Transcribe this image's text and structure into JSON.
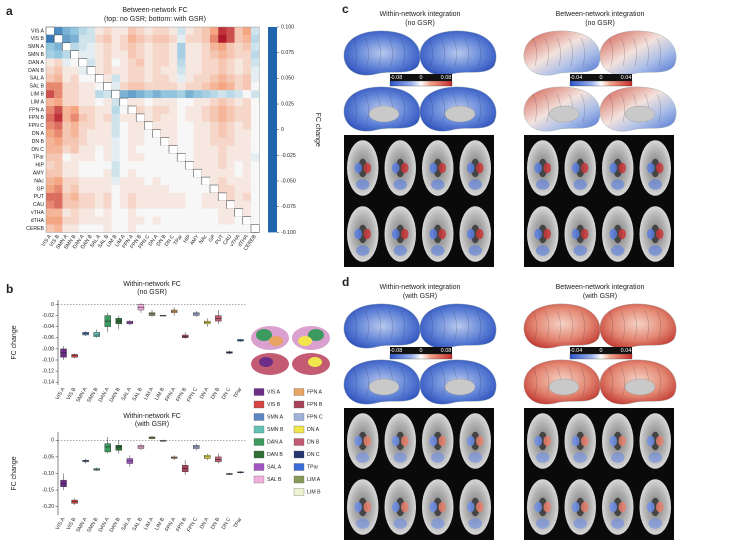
{
  "chart_data": [
    {
      "type": "heatmap",
      "title": "Between-network FC",
      "subtitle": "(top: no GSR; bottom: with GSR)",
      "labels": [
        "VIS A",
        "VIS B",
        "SMN A",
        "SMN B",
        "DAN A",
        "DAN B",
        "SAL A",
        "SAL B",
        "LIM B",
        "LIM A",
        "FPN A",
        "FPN B",
        "FPN C",
        "DN A",
        "DN B",
        "DN C",
        "TPar",
        "HIP",
        "AMY",
        "NAc",
        "GP",
        "PUT",
        "CAU",
        "vTHA",
        "dTHA",
        "CEREB"
      ],
      "values": [
        [
          null,
          -0.08,
          -0.06,
          -0.05,
          -0.03,
          -0.02,
          0.01,
          0.02,
          0.01,
          0.01,
          0.03,
          0.02,
          0.01,
          0.02,
          0.02,
          0.01,
          -0.02,
          0.01,
          0.02,
          0.03,
          0.05,
          0.09,
          0.08,
          0.03,
          0.05,
          -0.02
        ],
        [
          -0.09,
          null,
          -0.07,
          -0.06,
          -0.02,
          -0.02,
          0.02,
          0.03,
          0.01,
          0.02,
          0.04,
          0.03,
          0.02,
          0.03,
          0.03,
          0.02,
          -0.01,
          0.02,
          0.02,
          0.03,
          0.06,
          0.1,
          0.08,
          0.03,
          0.04,
          -0.03
        ],
        [
          -0.05,
          -0.06,
          null,
          -0.03,
          -0.02,
          -0.01,
          0.01,
          0.02,
          0.01,
          0.02,
          0.03,
          0.02,
          0.01,
          0.02,
          0.02,
          0.01,
          -0.04,
          0.01,
          0.01,
          0.02,
          0.04,
          0.05,
          0.03,
          0.02,
          0.03,
          -0.02
        ],
        [
          -0.04,
          -0.05,
          -0.03,
          null,
          -0.01,
          -0.01,
          0.01,
          0.02,
          0.01,
          0.01,
          0.03,
          0.02,
          0.01,
          0.02,
          0.02,
          0.01,
          -0.04,
          0.01,
          0.01,
          0.02,
          0.03,
          0.04,
          0.03,
          0.02,
          0.02,
          -0.03
        ],
        [
          0.01,
          0.02,
          -0.01,
          0.0,
          null,
          -0.02,
          0.01,
          0.02,
          0.0,
          0.01,
          0.02,
          0.03,
          0.01,
          0.02,
          0.02,
          0.01,
          -0.03,
          0.01,
          0.01,
          0.02,
          0.02,
          0.03,
          0.02,
          0.01,
          0.02,
          -0.02
        ],
        [
          0.02,
          0.03,
          0.01,
          0.01,
          -0.01,
          null,
          0.01,
          0.02,
          0.01,
          0.01,
          0.02,
          0.02,
          0.01,
          0.02,
          0.01,
          0.01,
          -0.02,
          0.01,
          0.01,
          0.02,
          0.02,
          0.03,
          0.02,
          0.01,
          0.02,
          -0.01
        ],
        [
          0.03,
          0.04,
          0.01,
          0.02,
          0.0,
          0.0,
          null,
          0.01,
          -0.02,
          0.01,
          0.02,
          0.02,
          0.01,
          0.02,
          0.02,
          0.01,
          -0.01,
          0.01,
          0.02,
          0.02,
          0.03,
          0.04,
          0.03,
          0.02,
          0.03,
          -0.01
        ],
        [
          0.06,
          0.06,
          0.02,
          0.02,
          0.01,
          0.01,
          0.0,
          null,
          -0.01,
          0.02,
          0.03,
          0.03,
          0.02,
          0.02,
          0.02,
          0.02,
          0.01,
          0.02,
          0.02,
          0.03,
          0.04,
          0.05,
          0.04,
          0.02,
          0.03,
          0.0
        ],
        [
          0.08,
          0.06,
          0.02,
          0.02,
          0.01,
          0.01,
          -0.03,
          -0.02,
          null,
          -0.06,
          -0.07,
          -0.06,
          -0.05,
          -0.06,
          -0.05,
          -0.05,
          -0.04,
          -0.06,
          -0.05,
          -0.04,
          -0.03,
          -0.02,
          -0.03,
          -0.02,
          0.0,
          -0.02
        ],
        [
          0.04,
          0.05,
          0.02,
          0.02,
          0.01,
          0.01,
          0.0,
          0.01,
          -0.02,
          null,
          0.01,
          0.01,
          0.0,
          0.01,
          0.01,
          0.01,
          0.0,
          0.0,
          0.01,
          0.01,
          0.02,
          0.03,
          0.02,
          0.01,
          0.02,
          0.0
        ],
        [
          0.06,
          0.08,
          0.04,
          0.05,
          0.02,
          0.02,
          0.01,
          0.01,
          -0.03,
          0.0,
          null,
          0.02,
          0.01,
          0.02,
          0.02,
          0.01,
          0.0,
          0.01,
          0.01,
          0.02,
          0.03,
          0.04,
          0.03,
          0.02,
          0.02,
          0.0
        ],
        [
          0.07,
          0.09,
          0.04,
          0.06,
          0.03,
          0.02,
          0.01,
          0.02,
          -0.02,
          0.01,
          0.01,
          null,
          0.01,
          0.02,
          0.01,
          0.01,
          0.0,
          0.01,
          0.01,
          0.02,
          0.03,
          0.04,
          0.03,
          0.02,
          0.02,
          0.0
        ],
        [
          0.06,
          0.07,
          0.03,
          0.04,
          0.02,
          0.02,
          0.01,
          0.01,
          -0.02,
          0.0,
          0.01,
          0.01,
          null,
          0.01,
          0.01,
          0.01,
          0.0,
          0.0,
          0.01,
          0.01,
          0.02,
          0.03,
          0.02,
          0.01,
          0.02,
          0.0
        ],
        [
          0.05,
          0.06,
          0.03,
          0.04,
          0.02,
          0.01,
          0.01,
          0.01,
          -0.02,
          0.0,
          0.01,
          0.01,
          0.0,
          null,
          0.01,
          0.01,
          0.0,
          0.0,
          0.01,
          0.01,
          0.02,
          0.03,
          0.02,
          0.01,
          0.01,
          0.0
        ],
        [
          0.04,
          0.05,
          0.03,
          0.03,
          0.02,
          0.01,
          0.01,
          0.01,
          -0.01,
          0.0,
          0.01,
          0.01,
          0.0,
          0.0,
          null,
          0.01,
          0.0,
          0.0,
          0.01,
          0.01,
          0.02,
          0.02,
          0.02,
          0.01,
          0.01,
          0.0
        ],
        [
          0.04,
          0.04,
          0.02,
          0.03,
          0.01,
          0.01,
          0.0,
          0.01,
          -0.01,
          0.0,
          0.01,
          0.0,
          0.0,
          0.0,
          0.0,
          null,
          0.0,
          0.0,
          0.01,
          0.01,
          0.01,
          0.02,
          0.01,
          0.01,
          0.01,
          0.0
        ],
        [
          0.03,
          0.03,
          0.0,
          0.01,
          0.01,
          0.01,
          0.0,
          0.01,
          -0.01,
          0.0,
          0.01,
          0.01,
          0.0,
          0.0,
          0.0,
          0.0,
          null,
          0.0,
          0.01,
          0.01,
          0.01,
          0.02,
          0.01,
          0.01,
          0.01,
          -0.01
        ],
        [
          0.02,
          0.03,
          0.01,
          0.01,
          0.0,
          0.0,
          0.0,
          0.0,
          -0.02,
          0.0,
          0.0,
          0.0,
          0.0,
          0.0,
          0.0,
          0.0,
          0.0,
          null,
          0.01,
          0.01,
          0.01,
          0.02,
          0.01,
          0.0,
          0.01,
          0.0
        ],
        [
          0.03,
          0.03,
          0.01,
          0.01,
          0.0,
          0.0,
          0.0,
          0.01,
          -0.02,
          0.0,
          0.01,
          0.0,
          0.0,
          0.0,
          0.0,
          0.0,
          0.0,
          0.0,
          null,
          0.01,
          0.01,
          0.01,
          0.01,
          0.0,
          0.01,
          0.0
        ],
        [
          0.04,
          0.05,
          0.02,
          0.02,
          0.01,
          0.01,
          0.01,
          0.01,
          -0.01,
          0.01,
          0.01,
          0.01,
          0.0,
          0.01,
          0.0,
          0.0,
          0.0,
          0.0,
          0.0,
          null,
          0.01,
          0.02,
          0.01,
          0.01,
          0.01,
          0.0
        ],
        [
          0.05,
          0.06,
          0.02,
          0.03,
          0.01,
          0.01,
          0.01,
          0.01,
          0.0,
          0.01,
          0.01,
          0.01,
          0.01,
          0.01,
          0.01,
          0.0,
          0.0,
          0.0,
          0.0,
          0.0,
          null,
          0.02,
          0.02,
          0.01,
          0.01,
          0.0
        ],
        [
          0.07,
          0.07,
          0.03,
          0.04,
          0.02,
          0.02,
          0.01,
          0.02,
          0.0,
          0.01,
          0.02,
          0.01,
          0.01,
          0.01,
          0.01,
          0.01,
          0.01,
          0.0,
          0.0,
          0.01,
          0.01,
          null,
          0.02,
          0.01,
          0.02,
          0.0
        ],
        [
          0.06,
          0.07,
          0.03,
          0.03,
          0.02,
          0.02,
          0.01,
          0.02,
          0.0,
          0.01,
          0.02,
          0.01,
          0.01,
          0.01,
          0.01,
          0.01,
          0.01,
          0.0,
          0.0,
          0.01,
          0.01,
          0.01,
          null,
          0.01,
          0.01,
          0.0
        ],
        [
          0.04,
          0.04,
          0.01,
          0.02,
          0.01,
          0.01,
          0.0,
          0.01,
          0.0,
          0.0,
          0.01,
          0.0,
          0.0,
          0.0,
          0.0,
          0.0,
          0.0,
          0.0,
          0.0,
          0.0,
          0.0,
          0.01,
          0.01,
          null,
          0.01,
          0.0
        ],
        [
          0.05,
          0.05,
          0.02,
          0.02,
          0.01,
          0.01,
          0.01,
          0.01,
          0.0,
          0.0,
          0.01,
          0.01,
          0.0,
          0.01,
          0.0,
          0.0,
          0.0,
          0.0,
          0.0,
          0.0,
          0.0,
          0.01,
          0.01,
          0.0,
          null,
          0.0
        ],
        [
          0.03,
          0.04,
          0.01,
          0.01,
          0.0,
          0.0,
          0.0,
          0.01,
          0.0,
          0.0,
          0.01,
          0.0,
          0.0,
          0.0,
          0.0,
          0.0,
          0.0,
          0.0,
          0.0,
          0.0,
          0.0,
          0.0,
          0.0,
          0.0,
          0.0,
          null
        ]
      ],
      "clim": [
        -0.1,
        0.1
      ],
      "cticks": [
        {
          "value": 0.1,
          "label": "0.100"
        },
        0.075,
        {
          "value": 0.05,
          "label": "0.050"
        },
        0.025,
        0,
        -0.025,
        {
          "value": -0.05,
          "label": "-0.050"
        },
        -0.075,
        {
          "value": -0.1,
          "label": "-0.100"
        }
      ],
      "colorbar_label": "FC change"
    },
    {
      "type": "box",
      "title": "Within-network FC",
      "subtitle": "(no GSR)",
      "ylabel": "FC change",
      "categories": [
        "VIS A",
        "VIS B",
        "SMN A",
        "SMN B",
        "DAN A",
        "DAN B",
        "SAL A",
        "SAL B",
        "LIM A",
        "LIM B",
        "FPN A",
        "FPN B",
        "FPN C",
        "DN A",
        "DN B",
        "DN C",
        "TPar"
      ],
      "min": [
        -0.1,
        -0.097,
        -0.057,
        -0.06,
        -0.05,
        -0.045,
        -0.038,
        -0.015,
        -0.022,
        -0.021,
        -0.02,
        -0.062,
        -0.022,
        -0.04,
        -0.035,
        -0.09,
        -0.067
      ],
      "q1": [
        -0.095,
        -0.095,
        -0.055,
        -0.058,
        -0.04,
        -0.035,
        -0.035,
        -0.01,
        -0.02,
        -0.0205,
        -0.015,
        -0.06,
        -0.02,
        -0.035,
        -0.03,
        -0.088,
        -0.066
      ],
      "median": [
        -0.087,
        -0.092,
        -0.052,
        -0.055,
        -0.03,
        -0.03,
        -0.033,
        -0.005,
        -0.017,
        -0.02,
        -0.012,
        -0.058,
        -0.017,
        -0.032,
        -0.025,
        -0.086,
        -0.065
      ],
      "q3": [
        -0.08,
        -0.09,
        -0.05,
        -0.05,
        -0.02,
        -0.025,
        -0.03,
        0.0,
        -0.015,
        -0.0195,
        -0.01,
        -0.055,
        -0.015,
        -0.03,
        -0.02,
        -0.085,
        -0.063
      ],
      "max": [
        -0.075,
        -0.088,
        -0.048,
        -0.045,
        -0.015,
        -0.02,
        -0.028,
        0.002,
        -0.01,
        -0.019,
        -0.005,
        -0.05,
        -0.012,
        -0.025,
        -0.01,
        -0.083,
        -0.062
      ],
      "ylim": [
        -0.145,
        0.008
      ],
      "yticks": [
        0,
        -0.02,
        -0.04,
        -0.06,
        -0.08,
        {
          "value": -0.1,
          "label": "-0.10"
        },
        -0.12,
        -0.14
      ],
      "reference_line": 0
    },
    {
      "type": "box",
      "title": "Within-network FC",
      "subtitle": "(with GSR)",
      "ylabel": "FC change",
      "categories": [
        "VIS A",
        "VIS B",
        "SMN A",
        "SMN B",
        "DAN A",
        "DAN B",
        "SAL A",
        "SAL B",
        "LIM A",
        "LIM B",
        "FPN A",
        "FPN B",
        "FPN C",
        "DN A",
        "DN B",
        "DN C",
        "TPar"
      ],
      "min": [
        -0.15,
        -0.195,
        -0.07,
        -0.092,
        -0.04,
        -0.04,
        -0.08,
        -0.03,
        0.003,
        -0.005,
        -0.06,
        -0.105,
        -0.03,
        -0.06,
        -0.07,
        -0.105,
        -0.1
      ],
      "q1": [
        -0.14,
        -0.19,
        -0.065,
        -0.09,
        -0.035,
        -0.03,
        -0.07,
        -0.025,
        0.005,
        -0.003,
        -0.055,
        -0.095,
        -0.025,
        -0.055,
        -0.065,
        -0.103,
        -0.098
      ],
      "median": [
        -0.13,
        -0.185,
        -0.062,
        -0.088,
        -0.02,
        -0.02,
        -0.062,
        -0.02,
        0.008,
        -0.002,
        -0.052,
        -0.085,
        -0.02,
        -0.05,
        -0.058,
        -0.101,
        -0.097
      ],
      "q3": [
        -0.12,
        -0.18,
        -0.06,
        -0.085,
        -0.01,
        -0.015,
        -0.055,
        -0.015,
        0.01,
        0.0,
        -0.05,
        -0.075,
        -0.015,
        -0.045,
        -0.05,
        -0.1,
        -0.095
      ],
      "max": [
        -0.1,
        -0.175,
        -0.055,
        -0.082,
        0.01,
        0.0,
        -0.045,
        -0.01,
        0.012,
        0.002,
        -0.045,
        -0.06,
        -0.01,
        -0.04,
        -0.04,
        -0.098,
        -0.093
      ],
      "ylim": [
        -0.225,
        0.025
      ],
      "yticks": [
        0,
        -0.05,
        {
          "value": -0.1,
          "label": "-0.10"
        },
        -0.15,
        {
          "value": -0.2,
          "label": "-0.20"
        }
      ],
      "reference_line": 0
    }
  ],
  "panel_labels": [
    "a",
    "b",
    "c",
    "d"
  ],
  "panel_b_legend": {
    "names": [
      "VIS A",
      "VIS B",
      "SMN A",
      "SMN B",
      "DAN A",
      "DAN B",
      "SAL A",
      "SAL B",
      "FPN A",
      "FPN B",
      "FPN C",
      "DN A",
      "DN B",
      "DN C",
      "TPar",
      "LIM A",
      "LIM B"
    ],
    "colors": [
      "#6b2d87",
      "#d64541",
      "#5d87c2",
      "#63c2b5",
      "#3c9a5f",
      "#2e6e37",
      "#a455c4",
      "#f2b0dc",
      "#e9a463",
      "#a8435a",
      "#9fb2d9",
      "#f2e64e",
      "#c35b72",
      "#263673",
      "#3a6bd6",
      "#8b9a5a",
      "#eff2cf"
    ]
  },
  "brain_maps": [
    {
      "within": {
        "title": "Within-network integration",
        "subtitle": "(no GSR)",
        "colorbar_ticks": [
          -0.08,
          0,
          0.08
        ]
      },
      "between": {
        "title": "Between-network integration",
        "subtitle": "(no GSR)",
        "colorbar_ticks": [
          -0.04,
          0,
          0.04
        ]
      }
    },
    {
      "within": {
        "title": "Within-network integration",
        "subtitle": "(with GSR)",
        "colorbar_ticks": [
          -0.08,
          0,
          0.08
        ]
      },
      "between": {
        "title": "Between-network integration",
        "subtitle": "(with GSR)",
        "colorbar_ticks": [
          -0.04,
          0,
          0.04
        ]
      }
    }
  ]
}
